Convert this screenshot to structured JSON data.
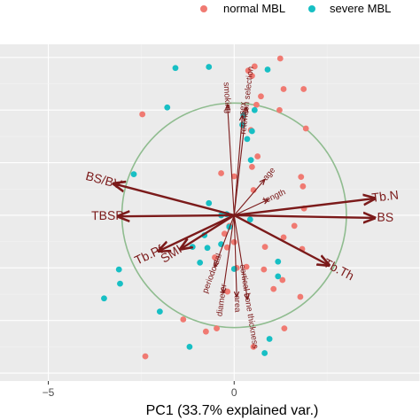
{
  "chart_data": {
    "type": "scatter",
    "title": "",
    "xlabel": "PC1 (33.7% explained var.)",
    "ylabel": "",
    "xlim": [
      -6.3,
      5.0
    ],
    "ylim": [
      -3.15,
      3.25
    ],
    "x_ticks": [
      -5,
      0
    ],
    "x_tick_labels": [
      "−5",
      "0"
    ],
    "grid": true,
    "legend": {
      "position": "top-right",
      "entries": [
        {
          "name": "normal MBL",
          "color": "#f07a72"
        },
        {
          "name": "severe MBL",
          "color": "#17bfc4"
        }
      ]
    },
    "colors": {
      "panel": "#ebebeb",
      "grid_major": "#ffffff",
      "grid_minor": "#f3f3f3",
      "circle": "#8fbc8f",
      "arrow": "#7b1a1a"
    },
    "circle": {
      "center": [
        0,
        0
      ],
      "radius": 3.02
    },
    "series": [
      {
        "name": "normal MBL",
        "color": "#f07a72",
        "points": [
          [
            0.55,
            2.83
          ],
          [
            0.48,
            2.65
          ],
          [
            1.24,
            2.98
          ],
          [
            1.33,
            2.4
          ],
          [
            0.72,
            2.26
          ],
          [
            1.22,
            2.0
          ],
          [
            -2.47,
            1.92
          ],
          [
            0.45,
            1.62
          ],
          [
            0.63,
            1.12
          ],
          [
            0.48,
            0.92
          ],
          [
            1.87,
            2.4
          ],
          [
            1.93,
            1.65
          ],
          [
            1.8,
            0.73
          ],
          [
            1.85,
            0.55
          ],
          [
            -0.35,
            0.8
          ],
          [
            0.0,
            0.74
          ],
          [
            0.52,
            0.48
          ],
          [
            1.88,
            0.13
          ],
          [
            1.62,
            -0.2
          ],
          [
            1.33,
            -0.42
          ],
          [
            0.83,
            -0.6
          ],
          [
            0.0,
            -0.51
          ],
          [
            -0.26,
            -0.35
          ],
          [
            -0.52,
            -0.8
          ],
          [
            -0.13,
            -0.2
          ],
          [
            -0.19,
            -0.61
          ],
          [
            0.07,
            -1.0
          ],
          [
            0.33,
            -0.98
          ],
          [
            0.8,
            -1.03
          ],
          [
            1.3,
            -1.23
          ],
          [
            1.83,
            -0.64
          ],
          [
            1.78,
            -1.55
          ],
          [
            1.06,
            -1.4
          ],
          [
            -1.37,
            -1.98
          ],
          [
            -2.39,
            -2.68
          ],
          [
            -0.76,
            -2.21
          ],
          [
            0.52,
            -2.5
          ],
          [
            -0.47,
            -2.15
          ],
          [
            0.6,
            2.1
          ],
          [
            0.38,
            2.75
          ],
          [
            -0.18,
            -1.45
          ],
          [
            1.35,
            -2.15
          ]
        ]
      },
      {
        "name": "severe MBL",
        "color": "#17bfc4",
        "points": [
          [
            -1.58,
            2.8
          ],
          [
            -0.68,
            2.82
          ],
          [
            0.9,
            2.77
          ],
          [
            -1.8,
            2.05
          ],
          [
            0.22,
            1.72
          ],
          [
            0.48,
            1.6
          ],
          [
            0.35,
            1.45
          ],
          [
            0.45,
            1.05
          ],
          [
            -2.7,
            0.78
          ],
          [
            -0.68,
            0.23
          ],
          [
            -0.2,
            0.02
          ],
          [
            -0.35,
            0.0
          ],
          [
            0.43,
            -0.08
          ],
          [
            -0.8,
            -0.38
          ],
          [
            -1.12,
            -0.6
          ],
          [
            -0.35,
            -0.55
          ],
          [
            1.18,
            -0.88
          ],
          [
            1.18,
            -1.16
          ],
          [
            -3.1,
            -1.03
          ],
          [
            -3.07,
            -1.3
          ],
          [
            -3.5,
            -1.58
          ],
          [
            -2.0,
            -1.83
          ],
          [
            0.0,
            -1.02
          ],
          [
            -0.13,
            -0.22
          ],
          [
            -1.2,
            -2.5
          ],
          [
            0.82,
            -2.62
          ],
          [
            0.95,
            -2.35
          ],
          [
            -0.72,
            -0.62
          ],
          [
            0.25,
            1.9
          ],
          [
            -0.92,
            -0.9
          ],
          [
            0.55,
            2.0
          ]
        ]
      }
    ],
    "loadings": [
      {
        "label": "BS/BV",
        "x": -3.24,
        "y": 0.6
      },
      {
        "label": "TBSP",
        "x": -3.12,
        "y": -0.02
      },
      {
        "label": "Tb.Pf",
        "x": -2.03,
        "y": -0.68
      },
      {
        "label": "SMI",
        "x": -1.44,
        "y": -0.64
      },
      {
        "label": "Tb.N",
        "x": 3.78,
        "y": 0.32
      },
      {
        "label": "BS",
        "x": 3.78,
        "y": -0.05
      },
      {
        "label": "Tb.Th",
        "x": 2.55,
        "y": -0.95
      },
      {
        "label": "smoking",
        "x": -0.18,
        "y": 2.1
      },
      {
        "label": "sex",
        "x": 0.22,
        "y": 1.9
      },
      {
        "label": "retention selection",
        "x": 0.33,
        "y": 2.05
      },
      {
        "label": "age",
        "x": 0.82,
        "y": 0.68
      },
      {
        "label": "length",
        "x": 0.92,
        "y": 0.3
      },
      {
        "label": "periodontal",
        "x": -0.52,
        "y": -0.98
      },
      {
        "label": "diameter",
        "x": -0.3,
        "y": -1.48
      },
      {
        "label": "area",
        "x": 0.07,
        "y": -1.55
      },
      {
        "label": "cortical bone thickness",
        "x": 0.36,
        "y": -1.6
      }
    ]
  }
}
